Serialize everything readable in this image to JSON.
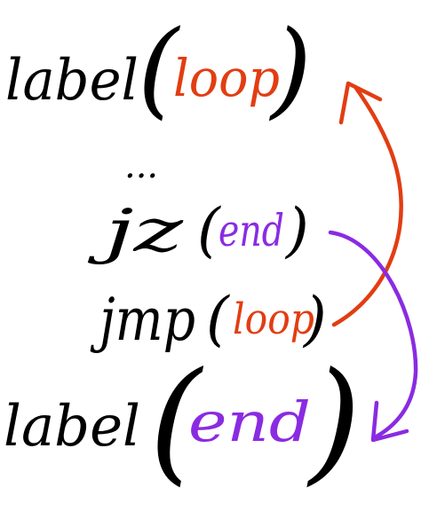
{
  "lines": [
    {
      "keyword": "label",
      "open": "(",
      "arg": "loop",
      "close": ")"
    },
    {
      "ellipsis": "..."
    },
    {
      "keyword": "jz",
      "open": "(",
      "arg": "end",
      "close": ")"
    },
    {
      "keyword": "jmp",
      "open": "(",
      "arg": "loop",
      "close": ")"
    },
    {
      "keyword": "label",
      "open": "(",
      "arg": "end",
      "close": ")"
    }
  ],
  "colors": {
    "ink": "#000000",
    "loop": "#e23d12",
    "end": "#8a2be2"
  },
  "arrows": [
    {
      "name": "jmp-to-loop",
      "color": "loop"
    },
    {
      "name": "jz-to-end",
      "color": "end"
    }
  ]
}
